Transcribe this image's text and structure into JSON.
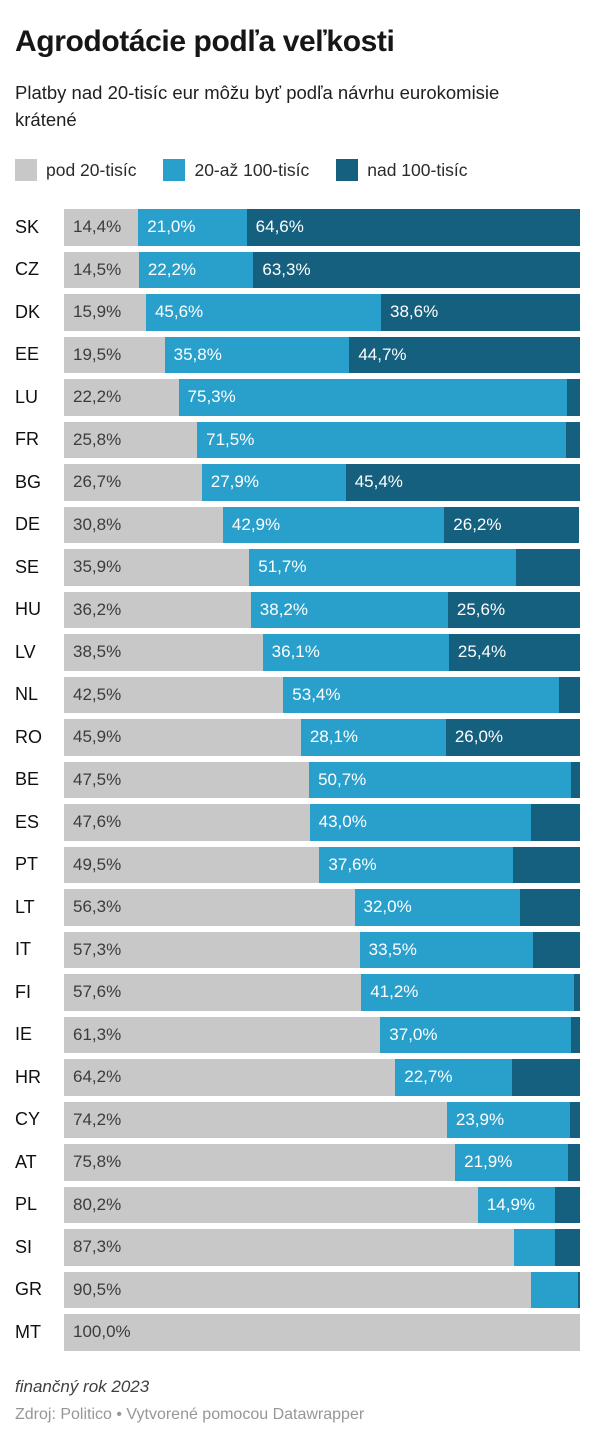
{
  "header": {
    "title": "Agrodotácie podľa veľkosti",
    "subtitle": "Platby nad 20-tisíc eur môžu byť podľa návrhu eurokomisie krátené"
  },
  "legend": {
    "items": [
      {
        "label": "pod 20-tisíc",
        "color": "#c8c8c8"
      },
      {
        "label": "20-až 100-tisíc",
        "color": "#29a0cc"
      },
      {
        "label": "nad 100-tisíc",
        "color": "#15607f"
      }
    ]
  },
  "footer": {
    "note": "finančný rok 2023",
    "source": "Zdroj: Politico • Vytvorené pomocou Datawrapper"
  },
  "chart_data": {
    "type": "bar",
    "stacked": true,
    "orientation": "horizontal",
    "value_unit": "percent",
    "xlim": [
      0,
      100
    ],
    "grid": false,
    "legend_position": "top",
    "series_names": [
      "pod 20-tisíc",
      "20-až 100-tisíc",
      "nad 100-tisíc"
    ],
    "series_colors": [
      "#c8c8c8",
      "#29a0cc",
      "#15607f"
    ],
    "series_label_colors": [
      "#3c3c3c",
      "#ffffff",
      "#ffffff"
    ],
    "rows": [
      {
        "code": "SK",
        "values": [
          14.4,
          21.0,
          64.6
        ],
        "labels": [
          "14,4%",
          "21,0%",
          "64,6%"
        ]
      },
      {
        "code": "CZ",
        "values": [
          14.5,
          22.2,
          63.3
        ],
        "labels": [
          "14,5%",
          "22,2%",
          "63,3%"
        ]
      },
      {
        "code": "DK",
        "values": [
          15.9,
          45.6,
          38.6
        ],
        "labels": [
          "15,9%",
          "45,6%",
          "38,6%"
        ]
      },
      {
        "code": "EE",
        "values": [
          19.5,
          35.8,
          44.7
        ],
        "labels": [
          "19,5%",
          "35,8%",
          "44,7%"
        ]
      },
      {
        "code": "LU",
        "values": [
          22.2,
          75.3,
          2.5
        ],
        "labels": [
          "22,2%",
          "75,3%",
          ""
        ]
      },
      {
        "code": "FR",
        "values": [
          25.8,
          71.5,
          2.7
        ],
        "labels": [
          "25,8%",
          "71,5%",
          ""
        ]
      },
      {
        "code": "BG",
        "values": [
          26.7,
          27.9,
          45.4
        ],
        "labels": [
          "26,7%",
          "27,9%",
          "45,4%"
        ]
      },
      {
        "code": "DE",
        "values": [
          30.8,
          42.9,
          26.2
        ],
        "labels": [
          "30,8%",
          "42,9%",
          "26,2%"
        ]
      },
      {
        "code": "SE",
        "values": [
          35.9,
          51.7,
          12.4
        ],
        "labels": [
          "35,9%",
          "51,7%",
          ""
        ]
      },
      {
        "code": "HU",
        "values": [
          36.2,
          38.2,
          25.6
        ],
        "labels": [
          "36,2%",
          "38,2%",
          "25,6%"
        ]
      },
      {
        "code": "LV",
        "values": [
          38.5,
          36.1,
          25.4
        ],
        "labels": [
          "38,5%",
          "36,1%",
          "25,4%"
        ]
      },
      {
        "code": "NL",
        "values": [
          42.5,
          53.4,
          4.1
        ],
        "labels": [
          "42,5%",
          "53,4%",
          ""
        ]
      },
      {
        "code": "RO",
        "values": [
          45.9,
          28.1,
          26.0
        ],
        "labels": [
          "45,9%",
          "28,1%",
          "26,0%"
        ]
      },
      {
        "code": "BE",
        "values": [
          47.5,
          50.7,
          1.8
        ],
        "labels": [
          "47,5%",
          "50,7%",
          ""
        ]
      },
      {
        "code": "ES",
        "values": [
          47.6,
          43.0,
          9.4
        ],
        "labels": [
          "47,6%",
          "43,0%",
          ""
        ]
      },
      {
        "code": "PT",
        "values": [
          49.5,
          37.6,
          12.9
        ],
        "labels": [
          "49,5%",
          "37,6%",
          ""
        ]
      },
      {
        "code": "LT",
        "values": [
          56.3,
          32.0,
          11.7
        ],
        "labels": [
          "56,3%",
          "32,0%",
          ""
        ]
      },
      {
        "code": "IT",
        "values": [
          57.3,
          33.5,
          9.2
        ],
        "labels": [
          "57,3%",
          "33,5%",
          ""
        ]
      },
      {
        "code": "FI",
        "values": [
          57.6,
          41.2,
          1.2
        ],
        "labels": [
          "57,6%",
          "41,2%",
          ""
        ]
      },
      {
        "code": "IE",
        "values": [
          61.3,
          37.0,
          1.7
        ],
        "labels": [
          "61,3%",
          "37,0%",
          ""
        ]
      },
      {
        "code": "HR",
        "values": [
          64.2,
          22.7,
          13.1
        ],
        "labels": [
          "64,2%",
          "22,7%",
          ""
        ]
      },
      {
        "code": "CY",
        "values": [
          74.2,
          23.9,
          1.9
        ],
        "labels": [
          "74,2%",
          "23,9%",
          ""
        ]
      },
      {
        "code": "AT",
        "values": [
          75.8,
          21.9,
          2.3
        ],
        "labels": [
          "75,8%",
          "21,9%",
          ""
        ]
      },
      {
        "code": "PL",
        "values": [
          80.2,
          14.9,
          4.9
        ],
        "labels": [
          "80,2%",
          "14,9%",
          ""
        ]
      },
      {
        "code": "SI",
        "values": [
          87.3,
          7.8,
          4.9
        ],
        "labels": [
          "87,3%",
          "",
          ""
        ]
      },
      {
        "code": "GR",
        "values": [
          90.5,
          9.2,
          0.3
        ],
        "labels": [
          "90,5%",
          "",
          ""
        ]
      },
      {
        "code": "MT",
        "values": [
          100.0,
          0,
          0
        ],
        "labels": [
          "100,0%",
          "",
          ""
        ]
      }
    ]
  }
}
